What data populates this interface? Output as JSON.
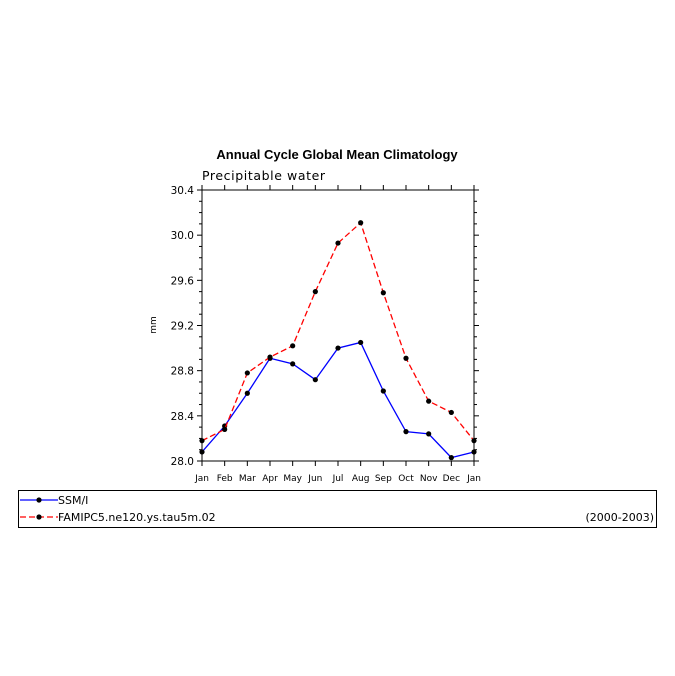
{
  "chart_data": {
    "type": "line",
    "title": "Annual Cycle Global Mean Climatology",
    "subtitle": "Precipitable water",
    "xlabel": "",
    "ylabel": "mm",
    "categories": [
      "Jan",
      "Feb",
      "Mar",
      "Apr",
      "May",
      "Jun",
      "Jul",
      "Aug",
      "Sep",
      "Oct",
      "Nov",
      "Dec",
      "Jan"
    ],
    "ylim": [
      28.0,
      30.4
    ],
    "yticks": [
      "28.0",
      "28.4",
      "28.8",
      "29.2",
      "29.6",
      "30.0",
      "30.4"
    ],
    "series": [
      {
        "name": "SSM/I",
        "color": "#0000ff",
        "dash": "solid",
        "values": [
          28.08,
          28.31,
          28.6,
          28.91,
          28.86,
          28.72,
          29.0,
          29.05,
          28.62,
          28.26,
          28.24,
          28.03,
          28.08
        ]
      },
      {
        "name": "FAMIPC5.ne120.ys.tau5m.02",
        "color": "#ff0000",
        "dash": "dashed",
        "values": [
          28.18,
          28.28,
          28.78,
          28.92,
          29.02,
          29.5,
          29.93,
          30.11,
          29.49,
          28.91,
          28.53,
          28.43,
          28.18
        ]
      }
    ],
    "grid": false,
    "legend_position": "bottom"
  },
  "legend_note": "(2000-2003)"
}
